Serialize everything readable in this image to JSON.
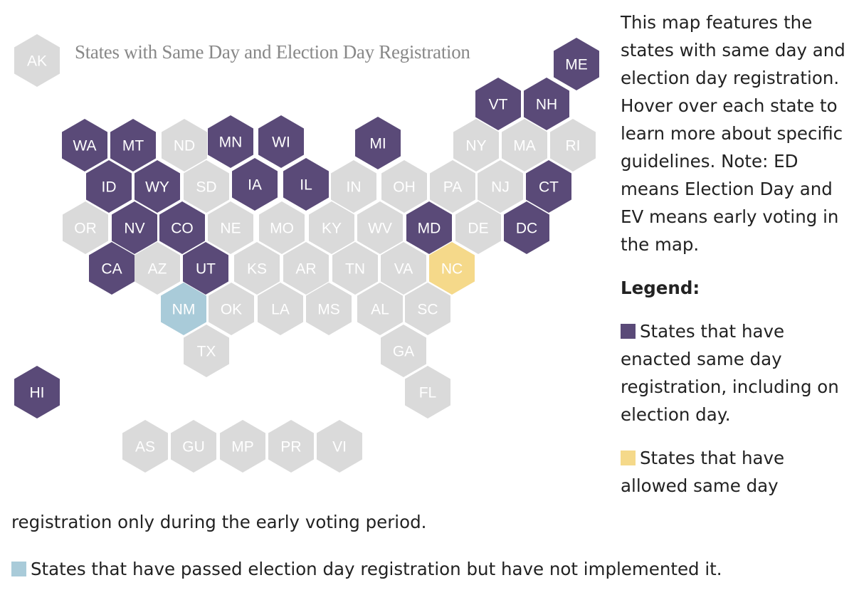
{
  "map": {
    "title": "States with Same Day and Election Day Registration",
    "colors": {
      "enacted": "#5a4a78",
      "early_voting_only": "#f5d98a",
      "passed_not_implemented": "#a9cbd9",
      "none": "#dadada"
    },
    "states": [
      {
        "abbr": "AK",
        "status": "none"
      },
      {
        "abbr": "ME",
        "status": "enacted"
      },
      {
        "abbr": "VT",
        "status": "enacted"
      },
      {
        "abbr": "NH",
        "status": "enacted"
      },
      {
        "abbr": "WA",
        "status": "enacted"
      },
      {
        "abbr": "MT",
        "status": "enacted"
      },
      {
        "abbr": "ND",
        "status": "none"
      },
      {
        "abbr": "MN",
        "status": "enacted"
      },
      {
        "abbr": "WI",
        "status": "enacted"
      },
      {
        "abbr": "MI",
        "status": "enacted"
      },
      {
        "abbr": "NY",
        "status": "none"
      },
      {
        "abbr": "MA",
        "status": "none"
      },
      {
        "abbr": "RI",
        "status": "none"
      },
      {
        "abbr": "ID",
        "status": "enacted"
      },
      {
        "abbr": "WY",
        "status": "enacted"
      },
      {
        "abbr": "SD",
        "status": "none"
      },
      {
        "abbr": "IA",
        "status": "enacted"
      },
      {
        "abbr": "IL",
        "status": "enacted"
      },
      {
        "abbr": "IN",
        "status": "none"
      },
      {
        "abbr": "OH",
        "status": "none"
      },
      {
        "abbr": "PA",
        "status": "none"
      },
      {
        "abbr": "NJ",
        "status": "none"
      },
      {
        "abbr": "CT",
        "status": "enacted"
      },
      {
        "abbr": "OR",
        "status": "none"
      },
      {
        "abbr": "NV",
        "status": "enacted"
      },
      {
        "abbr": "CO",
        "status": "enacted"
      },
      {
        "abbr": "NE",
        "status": "none"
      },
      {
        "abbr": "MO",
        "status": "none"
      },
      {
        "abbr": "KY",
        "status": "none"
      },
      {
        "abbr": "WV",
        "status": "none"
      },
      {
        "abbr": "MD",
        "status": "enacted"
      },
      {
        "abbr": "DE",
        "status": "none"
      },
      {
        "abbr": "DC",
        "status": "enacted"
      },
      {
        "abbr": "CA",
        "status": "enacted"
      },
      {
        "abbr": "AZ",
        "status": "none"
      },
      {
        "abbr": "UT",
        "status": "enacted"
      },
      {
        "abbr": "KS",
        "status": "none"
      },
      {
        "abbr": "AR",
        "status": "none"
      },
      {
        "abbr": "TN",
        "status": "none"
      },
      {
        "abbr": "VA",
        "status": "none"
      },
      {
        "abbr": "NC",
        "status": "early_voting_only"
      },
      {
        "abbr": "NM",
        "status": "passed_not_implemented"
      },
      {
        "abbr": "OK",
        "status": "none"
      },
      {
        "abbr": "LA",
        "status": "none"
      },
      {
        "abbr": "MS",
        "status": "none"
      },
      {
        "abbr": "AL",
        "status": "none"
      },
      {
        "abbr": "SC",
        "status": "none"
      },
      {
        "abbr": "TX",
        "status": "none"
      },
      {
        "abbr": "GA",
        "status": "none"
      },
      {
        "abbr": "HI",
        "status": "enacted"
      },
      {
        "abbr": "FL",
        "status": "none"
      },
      {
        "abbr": "AS",
        "status": "none"
      },
      {
        "abbr": "GU",
        "status": "none"
      },
      {
        "abbr": "MP",
        "status": "none"
      },
      {
        "abbr": "PR",
        "status": "none"
      },
      {
        "abbr": "VI",
        "status": "none"
      }
    ]
  },
  "description": "This map features the states with same day and election day registration. Hover over each state to learn more about specific guidelines. Note: ED means Election Day and EV means early voting in the map.",
  "legend": {
    "title": "Legend:",
    "enacted": "States that have enacted same day registration, including on election day.",
    "early_voting_only_start": "States that have allowed same day",
    "early_voting_only_end": "registration only during the early voting period.",
    "passed_not_implemented": "States that have passed election day registration but have not implemented it."
  }
}
